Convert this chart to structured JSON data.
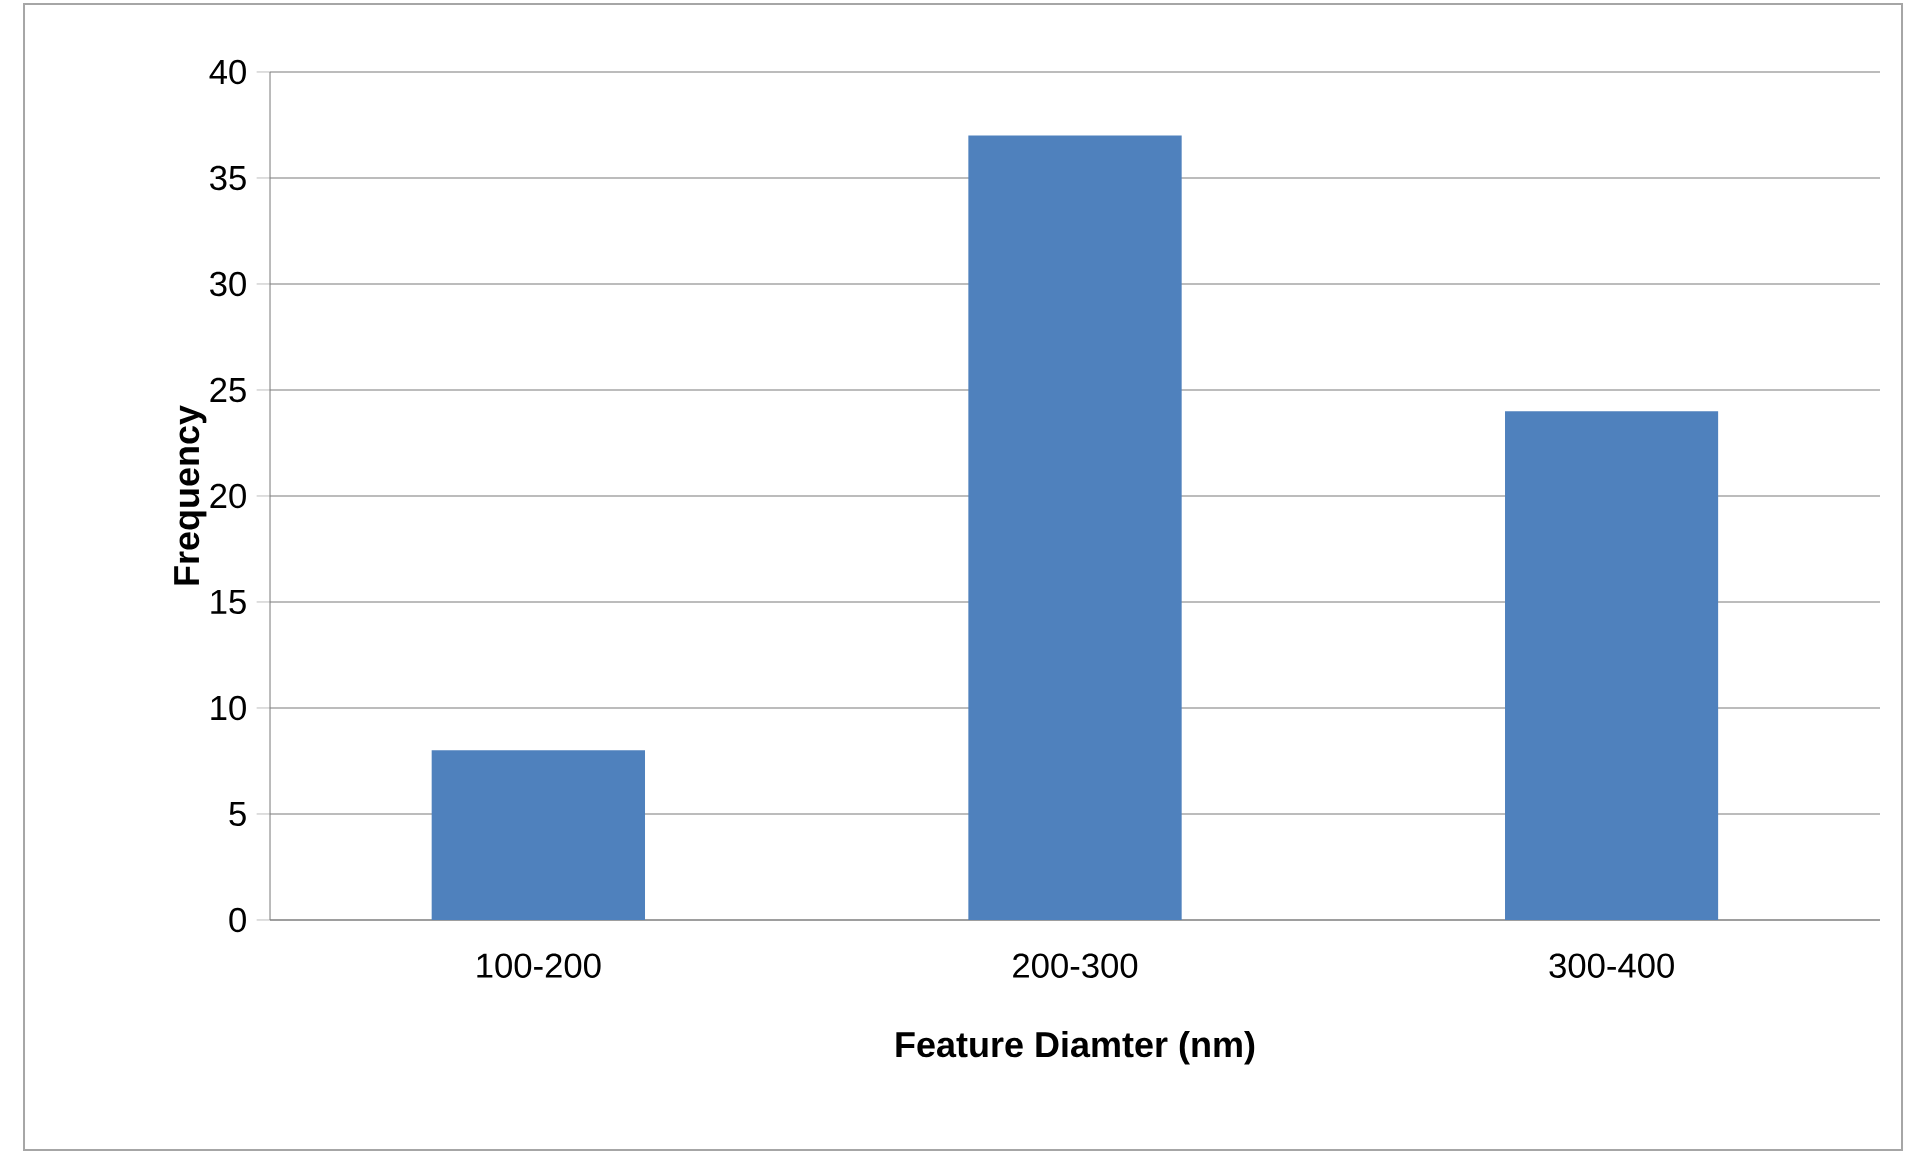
{
  "chart_data": {
    "type": "bar",
    "xlabel": "Feature Diamter (nm)",
    "ylabel": "Frequency",
    "categories": [
      "100-200",
      "200-300",
      "300-400"
    ],
    "values": [
      8,
      37,
      24
    ],
    "color": "#4f81bd",
    "ylim": [
      0,
      40
    ],
    "yticks": [
      0,
      5,
      10,
      15,
      20,
      25,
      30,
      35,
      40
    ],
    "grid": "y"
  }
}
